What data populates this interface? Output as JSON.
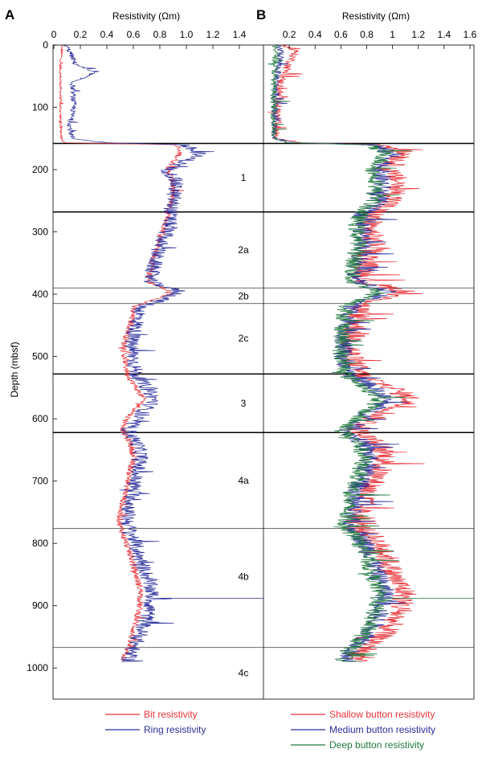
{
  "chart_data": [
    {
      "panel": "A",
      "type": "line",
      "xlabel": "Resistivity (Ωm)",
      "ylabel": "Depth (mbsf)",
      "xlim": [
        0,
        1.5
      ],
      "xticks": [
        "0",
        "0.2",
        "0.4",
        "0.6",
        "0.8",
        "1.0",
        "1.2",
        "1.4"
      ],
      "ylim": [
        0,
        1050
      ],
      "yticks": [
        "0",
        "100",
        "200",
        "300",
        "400",
        "500",
        "600",
        "700",
        "800",
        "900",
        "1000"
      ],
      "grid": false,
      "legend_placement": "bottom",
      "unit_boundaries_mbsf": [
        158,
        268,
        390,
        415,
        528,
        622,
        776,
        967
      ],
      "units": [
        {
          "label": "1",
          "depth": 213
        },
        {
          "label": "2a",
          "depth": 329
        },
        {
          "label": "2b",
          "depth": 403
        },
        {
          "label": "2c",
          "depth": 471
        },
        {
          "label": "3",
          "depth": 575
        },
        {
          "label": "4a",
          "depth": 699
        },
        {
          "label": "4b",
          "depth": 853
        },
        {
          "label": "4c",
          "depth": 1008
        }
      ],
      "series": [
        {
          "name": "Bit resistivity",
          "color": "#e8333a",
          "depth": [
            0,
            10,
            30,
            60,
            100,
            130,
            150,
            157,
            160,
            175,
            200,
            220,
            250,
            270,
            290,
            320,
            350,
            380,
            395,
            405,
            420,
            450,
            480,
            500,
            530,
            550,
            570,
            600,
            620,
            640,
            660,
            690,
            720,
            750,
            770,
            790,
            820,
            850,
            880,
            910,
            940,
            960,
            975,
            990
          ],
          "resistivity": [
            0.06,
            0.06,
            0.05,
            0.05,
            0.05,
            0.05,
            0.06,
            0.08,
            0.92,
            0.95,
            0.86,
            0.9,
            0.89,
            0.86,
            0.84,
            0.79,
            0.74,
            0.71,
            0.87,
            0.82,
            0.6,
            0.58,
            0.53,
            0.53,
            0.56,
            0.62,
            0.68,
            0.55,
            0.52,
            0.58,
            0.6,
            0.57,
            0.54,
            0.5,
            0.5,
            0.53,
            0.58,
            0.62,
            0.66,
            0.64,
            0.6,
            0.57,
            0.54,
            0.52
          ]
        },
        {
          "name": "Ring resistivity",
          "color": "#2b2f9c",
          "depth": [
            0,
            10,
            30,
            45,
            60,
            100,
            130,
            150,
            157,
            160,
            175,
            200,
            220,
            250,
            270,
            290,
            320,
            350,
            380,
            395,
            405,
            420,
            450,
            480,
            500,
            530,
            550,
            570,
            600,
            620,
            640,
            660,
            690,
            720,
            750,
            770,
            790,
            820,
            850,
            880,
            910,
            940,
            960,
            975,
            990
          ],
          "resistivity": [
            0.09,
            0.12,
            0.16,
            0.3,
            0.14,
            0.15,
            0.12,
            0.14,
            0.4,
            0.98,
            1.1,
            0.86,
            0.92,
            0.9,
            0.88,
            0.87,
            0.8,
            0.76,
            0.72,
            0.95,
            0.87,
            0.66,
            0.62,
            0.58,
            0.6,
            0.62,
            0.7,
            0.76,
            0.62,
            0.56,
            0.63,
            0.66,
            0.62,
            0.6,
            0.56,
            0.56,
            0.6,
            0.64,
            0.7,
            0.74,
            0.72,
            0.66,
            0.62,
            0.58,
            0.56
          ]
        }
      ]
    },
    {
      "panel": "B",
      "type": "line",
      "xlabel": "Resistivity (Ωm)",
      "ylabel": "Depth (mbsf)",
      "xlim": [
        0,
        1.6
      ],
      "xticks": [
        "0.2",
        "0.4",
        "0.6",
        "0.8",
        "1",
        "1.2",
        "1.4",
        "1.6"
      ],
      "ylim": [
        0,
        1050
      ],
      "grid": false,
      "legend_placement": "bottom",
      "unit_boundaries_mbsf": [
        158,
        268,
        390,
        415,
        528,
        622,
        776,
        967
      ],
      "series": [
        {
          "name": "Shallow button resistivity",
          "color": "#e8333a",
          "depth": [
            0,
            10,
            30,
            60,
            100,
            130,
            150,
            157,
            160,
            175,
            200,
            220,
            250,
            270,
            290,
            320,
            350,
            380,
            395,
            405,
            420,
            450,
            480,
            500,
            530,
            550,
            570,
            600,
            620,
            640,
            660,
            690,
            720,
            750,
            770,
            790,
            820,
            850,
            880,
            910,
            940,
            960,
            975,
            990
          ],
          "resistivity": [
            0.15,
            0.25,
            0.2,
            0.13,
            0.11,
            0.1,
            0.1,
            0.3,
            0.95,
            1.1,
            0.95,
            1.05,
            1.0,
            0.85,
            0.82,
            0.85,
            0.8,
            0.78,
            1.1,
            0.95,
            0.75,
            0.72,
            0.68,
            0.68,
            0.75,
            1.0,
            1.15,
            0.85,
            0.72,
            0.88,
            0.95,
            0.88,
            0.8,
            0.75,
            0.72,
            0.85,
            0.95,
            1.0,
            1.1,
            1.05,
            0.95,
            0.85,
            0.75,
            0.7
          ]
        },
        {
          "name": "Medium button resistivity",
          "color": "#2b2f9c",
          "depth": [
            0,
            10,
            30,
            60,
            100,
            130,
            150,
            157,
            160,
            175,
            200,
            220,
            250,
            270,
            290,
            320,
            350,
            380,
            395,
            405,
            420,
            450,
            480,
            500,
            530,
            550,
            570,
            600,
            620,
            640,
            660,
            690,
            720,
            750,
            770,
            790,
            820,
            850,
            880,
            910,
            940,
            960,
            975,
            990
          ],
          "resistivity": [
            0.1,
            0.14,
            0.12,
            0.1,
            0.09,
            0.09,
            0.09,
            0.25,
            0.85,
            1.0,
            0.9,
            0.92,
            0.9,
            0.78,
            0.76,
            0.78,
            0.74,
            0.72,
            0.95,
            0.86,
            0.68,
            0.66,
            0.62,
            0.62,
            0.68,
            0.85,
            0.95,
            0.76,
            0.65,
            0.78,
            0.82,
            0.78,
            0.72,
            0.68,
            0.66,
            0.76,
            0.84,
            0.88,
            0.95,
            0.9,
            0.84,
            0.76,
            0.68,
            0.64
          ]
        },
        {
          "name": "Deep button resistivity",
          "color": "#1f7a3c",
          "depth": [
            0,
            10,
            30,
            60,
            100,
            130,
            150,
            157,
            160,
            175,
            200,
            220,
            250,
            270,
            290,
            320,
            350,
            380,
            395,
            405,
            420,
            450,
            480,
            500,
            530,
            550,
            570,
            600,
            620,
            640,
            660,
            690,
            720,
            750,
            770,
            790,
            820,
            850,
            880,
            910,
            940,
            960,
            975,
            990
          ],
          "resistivity": [
            0.08,
            0.1,
            0.09,
            0.08,
            0.08,
            0.08,
            0.08,
            0.2,
            0.8,
            0.95,
            0.85,
            0.88,
            0.86,
            0.75,
            0.72,
            0.74,
            0.7,
            0.68,
            0.9,
            0.82,
            0.64,
            0.62,
            0.6,
            0.6,
            0.64,
            0.8,
            0.9,
            0.72,
            0.62,
            0.74,
            0.78,
            0.74,
            0.68,
            0.64,
            0.63,
            0.72,
            0.8,
            0.84,
            0.9,
            0.86,
            0.8,
            0.72,
            0.65,
            0.62
          ]
        }
      ]
    }
  ]
}
